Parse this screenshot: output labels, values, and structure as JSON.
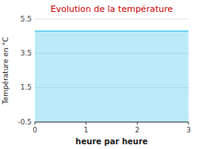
{
  "chart_data": {
    "type": "area",
    "title": "Evolution de la température",
    "xlabel": "heure par heure",
    "ylabel": "Température en °C",
    "x": [
      0,
      3
    ],
    "series": [
      {
        "color": "#55ccee",
        "values": [
          4.8,
          4.8
        ]
      }
    ],
    "xlim": [
      0,
      3
    ],
    "ylim": [
      -0.5,
      5.5
    ],
    "xticks": [
      0,
      1,
      2,
      3
    ],
    "yticks": [
      -0.5,
      1.5,
      3.5,
      5.5
    ],
    "grid": true
  }
}
